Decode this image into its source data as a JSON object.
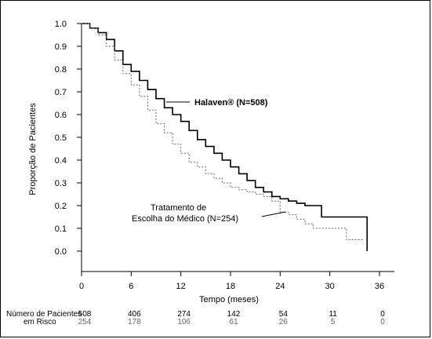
{
  "chart_data": {
    "type": "line",
    "xlabel": "Tempo (meses)",
    "ylabel": "Proporção de Pacientes",
    "xlim": [
      0,
      36
    ],
    "ylim": [
      0.0,
      1.0
    ],
    "x_ticks": [
      "0",
      "6",
      "12",
      "18",
      "24",
      "30",
      "36"
    ],
    "y_ticks": [
      "0.0",
      "0.1",
      "0.2",
      "0.3",
      "0.4",
      "0.5",
      "0.6",
      "0.7",
      "0.8",
      "0.9",
      "1.0"
    ],
    "grid": false,
    "series": [
      {
        "name": "Halaven® (N=508)",
        "style": "solid",
        "color": "#000000",
        "x": [
          0,
          1,
          2,
          3,
          4,
          5,
          6,
          7,
          8,
          9,
          10,
          11,
          12,
          13,
          14,
          15,
          16,
          17,
          18,
          19,
          20,
          21,
          22,
          23,
          24,
          25,
          26,
          27,
          28,
          29,
          30,
          31,
          32,
          33,
          34,
          34.5,
          34.5
        ],
        "y": [
          1.0,
          0.98,
          0.96,
          0.93,
          0.88,
          0.82,
          0.79,
          0.75,
          0.71,
          0.67,
          0.63,
          0.6,
          0.57,
          0.53,
          0.49,
          0.46,
          0.43,
          0.4,
          0.37,
          0.34,
          0.31,
          0.28,
          0.26,
          0.24,
          0.23,
          0.22,
          0.21,
          0.2,
          0.2,
          0.15,
          0.15,
          0.15,
          0.15,
          0.15,
          0.15,
          0.15,
          0.0
        ]
      },
      {
        "name": "Tratamento de Escolha do Médico (N=254)",
        "style": "dashed",
        "color": "#666666",
        "x": [
          0,
          1,
          2,
          3,
          4,
          5,
          6,
          7,
          8,
          9,
          10,
          11,
          12,
          13,
          14,
          15,
          16,
          17,
          18,
          19,
          20,
          21,
          22,
          23,
          24,
          25,
          26,
          27,
          28,
          29,
          30,
          31,
          32,
          33,
          34
        ],
        "y": [
          1.0,
          0.98,
          0.95,
          0.9,
          0.84,
          0.78,
          0.73,
          0.68,
          0.62,
          0.56,
          0.52,
          0.47,
          0.43,
          0.39,
          0.37,
          0.34,
          0.32,
          0.3,
          0.28,
          0.27,
          0.26,
          0.25,
          0.24,
          0.22,
          0.17,
          0.16,
          0.14,
          0.12,
          0.1,
          0.1,
          0.1,
          0.1,
          0.05,
          0.05,
          0.05
        ]
      }
    ],
    "annotations": {
      "halaven_label": "Halaven® (N=508)",
      "physician_label_line1": "Tratamento de",
      "physician_label_line2": "Escolha do Médico (N=254)"
    },
    "risk_table": {
      "label_line1": "Número de Pacientes",
      "label_line2": "em Risco",
      "halaven": [
        "508",
        "406",
        "274",
        "142",
        "54",
        "11",
        "0"
      ],
      "physician": [
        "254",
        "178",
        "106",
        "61",
        "26",
        "5",
        "0"
      ]
    },
    "colors": {
      "halaven": "#000000",
      "physician": "#666666"
    }
  }
}
